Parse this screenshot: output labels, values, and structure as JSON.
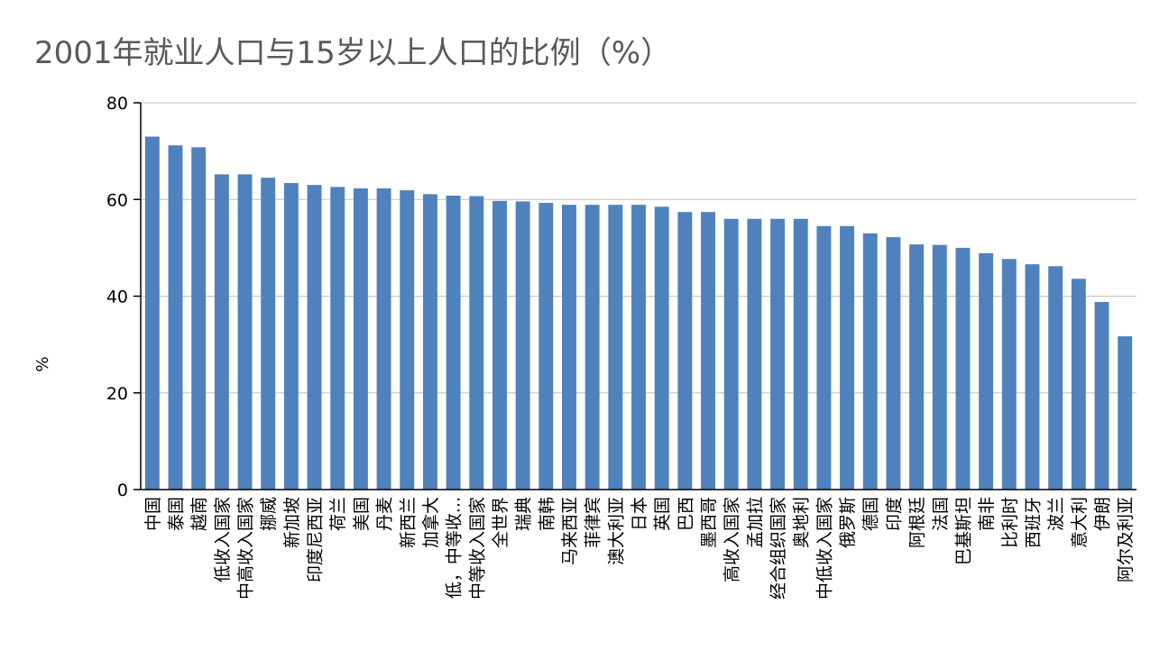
{
  "chart_data": {
    "type": "bar",
    "title": "2001年就业人口与15岁以上人口的比例（%）",
    "xlabel": "",
    "ylabel": "%",
    "ylim": [
      0,
      80
    ],
    "yticks": [
      0,
      20,
      40,
      60,
      80
    ],
    "grid": true,
    "legend": "none",
    "bar_color": "#4f81bd",
    "categories": [
      "中国",
      "泰国",
      "越南",
      "低收入国家",
      "中高收入国家",
      "挪威",
      "新加坡",
      "印度尼西亚",
      "荷兰",
      "美国",
      "丹麦",
      "新西兰",
      "加拿大",
      "低，中等收...",
      "中等收入国家",
      "全世界",
      "瑞典",
      "南韩",
      "马来西亚",
      "菲律宾",
      "澳大利亚",
      "日本",
      "英国",
      "巴西",
      "墨西哥",
      "高收入国家",
      "孟加拉",
      "经合组织国家",
      "奥地利",
      "中低收入国家",
      "俄罗斯",
      "德国",
      "印度",
      "阿根廷",
      "法国",
      "巴基斯坦",
      "南非",
      "比利时",
      "西班牙",
      "波兰",
      "意大利",
      "伊朗",
      "阿尔及利亚"
    ],
    "values": [
      73.0,
      71.2,
      70.8,
      65.2,
      65.2,
      64.5,
      63.4,
      63.0,
      62.6,
      62.3,
      62.3,
      61.9,
      61.1,
      60.8,
      60.7,
      59.7,
      59.6,
      59.3,
      58.9,
      58.9,
      58.9,
      58.9,
      58.5,
      57.4,
      57.4,
      56.0,
      56.0,
      56.0,
      56.0,
      54.5,
      54.5,
      53.0,
      52.2,
      50.7,
      50.6,
      50.0,
      48.9,
      47.7,
      46.6,
      46.2,
      43.6,
      38.8,
      31.7
    ]
  }
}
